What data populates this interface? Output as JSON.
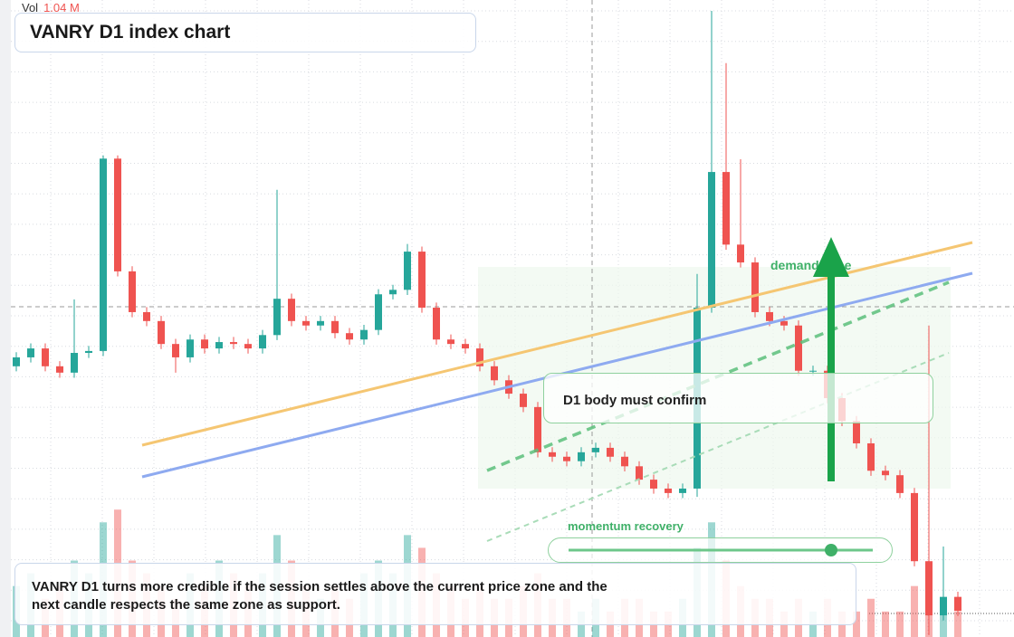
{
  "header": {
    "vol_label": "Vol",
    "vol_value": "1.04 M",
    "title": "VANRY D1 index chart"
  },
  "chart_data": {
    "type": "candlestick",
    "open": [
      42.5,
      43.9,
      45.3,
      42.5,
      41.5,
      44.6,
      44.9,
      75.1,
      57.4,
      51.0,
      49.6,
      46.0,
      43.9,
      46.7,
      45.3,
      46.3,
      46.0,
      45.3,
      47.4,
      53.1,
      49.6,
      48.9,
      49.6,
      47.7,
      46.7,
      48.2,
      53.8,
      54.5,
      60.5,
      51.7,
      46.7,
      46.0,
      45.3,
      42.5,
      40.3,
      38.2,
      36.1,
      29.0,
      28.3,
      27.6,
      29.0,
      29.7,
      28.3,
      26.8,
      24.7,
      23.3,
      22.6,
      23.3,
      51.7,
      73.0,
      61.6,
      58.8,
      51.0,
      49.6,
      48.9,
      41.8,
      41.8,
      37.5,
      33.9,
      30.4,
      26.1,
      25.4,
      22.6,
      11.9,
      3.4,
      6.3
    ],
    "high": [
      44.7,
      46.1,
      46.1,
      43.3,
      53.0,
      45.7,
      75.6,
      75.6,
      58.2,
      51.8,
      50.4,
      46.8,
      47.5,
      47.5,
      47.1,
      47.1,
      46.8,
      48.2,
      70.2,
      53.9,
      50.4,
      50.4,
      50.4,
      48.5,
      49.0,
      54.6,
      55.3,
      61.7,
      61.3,
      52.5,
      47.5,
      46.8,
      46.1,
      43.3,
      41.1,
      39.0,
      36.9,
      29.8,
      29.1,
      29.8,
      30.5,
      30.5,
      29.1,
      27.6,
      25.5,
      24.1,
      24.1,
      57.0,
      98.3,
      90.1,
      75.0,
      59.6,
      51.8,
      50.4,
      49.7,
      42.6,
      42.6,
      38.3,
      34.7,
      31.2,
      26.9,
      26.2,
      23.4,
      48.9,
      14.2,
      7.1
    ],
    "low": [
      41.7,
      43.1,
      41.7,
      40.7,
      40.7,
      43.8,
      44.1,
      56.6,
      50.2,
      48.8,
      45.2,
      41.5,
      43.1,
      44.5,
      44.5,
      45.2,
      44.5,
      44.5,
      46.6,
      48.8,
      48.1,
      48.1,
      46.9,
      45.9,
      45.9,
      47.4,
      53.0,
      53.7,
      50.9,
      45.9,
      45.2,
      44.5,
      41.7,
      39.5,
      37.4,
      35.3,
      28.2,
      27.5,
      26.8,
      26.8,
      28.2,
      27.5,
      26.0,
      23.9,
      22.5,
      21.8,
      21.8,
      22.0,
      50.9,
      60.8,
      58.0,
      50.2,
      48.8,
      48.1,
      41.0,
      41.0,
      36.7,
      33.1,
      29.6,
      25.3,
      24.6,
      21.8,
      11.1,
      0.3,
      2.6,
      3.3
    ],
    "close": [
      43.9,
      45.3,
      42.5,
      41.5,
      44.6,
      44.9,
      75.1,
      57.4,
      51.0,
      49.6,
      46.0,
      43.9,
      46.7,
      45.3,
      46.3,
      46.0,
      45.3,
      47.4,
      53.1,
      49.6,
      48.9,
      49.6,
      47.7,
      46.7,
      48.2,
      53.8,
      54.5,
      60.5,
      51.7,
      46.7,
      46.0,
      45.3,
      42.5,
      40.3,
      38.2,
      36.1,
      29.0,
      28.3,
      27.6,
      29.0,
      29.7,
      28.3,
      26.8,
      24.7,
      23.3,
      22.6,
      23.3,
      51.7,
      73.0,
      61.6,
      58.8,
      51.0,
      49.6,
      48.9,
      41.8,
      41.8,
      37.5,
      33.9,
      30.4,
      26.1,
      25.4,
      22.6,
      11.9,
      3.4,
      6.3,
      4.1
    ],
    "volume": [
      0.4,
      0.5,
      0.3,
      0.4,
      0.6,
      0.5,
      0.9,
      1.0,
      0.6,
      0.5,
      0.4,
      0.3,
      0.5,
      0.4,
      0.6,
      0.5,
      0.4,
      0.5,
      0.8,
      0.6,
      0.4,
      0.3,
      0.4,
      0.3,
      0.5,
      0.6,
      0.5,
      0.8,
      0.7,
      0.5,
      0.4,
      0.3,
      0.4,
      0.3,
      0.3,
      0.4,
      0.5,
      0.3,
      0.3,
      0.2,
      0.3,
      0.2,
      0.3,
      0.3,
      0.2,
      0.2,
      0.3,
      0.7,
      0.9,
      0.6,
      0.4,
      0.3,
      0.3,
      0.2,
      0.3,
      0.2,
      0.3,
      0.2,
      0.2,
      0.3,
      0.2,
      0.2,
      0.4,
      0.5,
      0.3,
      0.2
    ],
    "up_color": "#26a69a",
    "down_color": "#ef5350",
    "ylim": [
      0,
      100
    ],
    "volume_lim": [
      0,
      5
    ],
    "grid": true
  },
  "annotations": {
    "zone_label": "demand zone",
    "confirm_label": "D1 body must confirm",
    "momentum_label": "momentum recovery",
    "note": "VANRY D1 turns more credible if the session settles above the current price zone and the next candle respects the same zone as support."
  }
}
